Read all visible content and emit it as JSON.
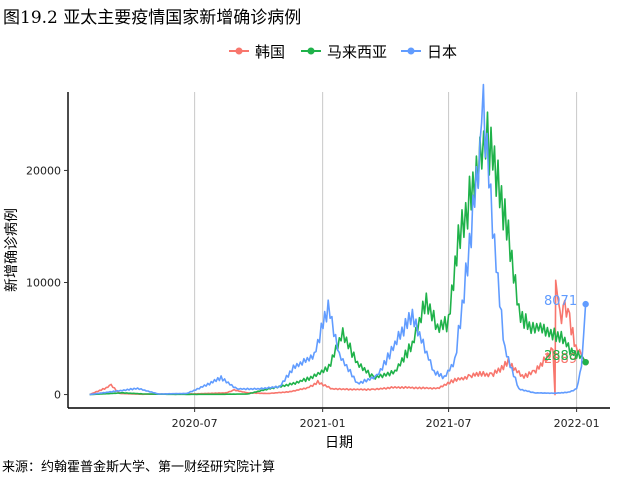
{
  "title": "图19.2 亚太主要疫情国家新增确诊病例",
  "source": "来源：约翰霍普金斯大学、第一财经研究院计算",
  "chart_data": {
    "type": "line",
    "xlabel": "日期",
    "ylabel": "新增确诊病例",
    "x_ticks": [
      "2020-07",
      "2021-01",
      "2021-07",
      "2022-01"
    ],
    "y_ticks": [
      0,
      10000,
      20000
    ],
    "ylim": [
      -1200,
      27000
    ],
    "grid": "vertical major gridlines only",
    "legend_position": "top",
    "series": [
      {
        "name": "韩国",
        "color": "#F8766D",
        "end_label": "2889",
        "points": [
          [
            "2020-02-01",
            0
          ],
          [
            "2020-02-25",
            600
          ],
          [
            "2020-03-03",
            850
          ],
          [
            "2020-03-15",
            100
          ],
          [
            "2020-04-15",
            30
          ],
          [
            "2020-06-01",
            40
          ],
          [
            "2020-07-01",
            60
          ],
          [
            "2020-08-15",
            150
          ],
          [
            "2020-08-27",
            400
          ],
          [
            "2020-09-15",
            150
          ],
          [
            "2020-10-15",
            100
          ],
          [
            "2020-11-15",
            250
          ],
          [
            "2020-12-10",
            600
          ],
          [
            "2020-12-25",
            1100
          ],
          [
            "2021-01-15",
            500
          ],
          [
            "2021-02-15",
            450
          ],
          [
            "2021-03-15",
            450
          ],
          [
            "2021-04-15",
            650
          ],
          [
            "2021-05-15",
            600
          ],
          [
            "2021-06-15",
            550
          ],
          [
            "2021-07-10",
            1300
          ],
          [
            "2021-08-01",
            1600
          ],
          [
            "2021-08-15",
            1900
          ],
          [
            "2021-09-01",
            1700
          ],
          [
            "2021-09-25",
            2900
          ],
          [
            "2021-10-15",
            1600
          ],
          [
            "2021-11-01",
            2000
          ],
          [
            "2021-11-15",
            3000
          ],
          [
            "2021-11-28",
            4000
          ],
          [
            "2021-12-01",
            0
          ],
          [
            "2021-12-02",
            10200
          ],
          [
            "2021-12-08",
            7000
          ],
          [
            "2021-12-15",
            7800
          ],
          [
            "2021-12-22",
            6500
          ],
          [
            "2021-12-31",
            4200
          ],
          [
            "2022-01-08",
            3500
          ],
          [
            "2022-01-14",
            2889
          ]
        ]
      },
      {
        "name": "马来西亚",
        "color": "#1FB24A",
        "end_label": "2888",
        "points": [
          [
            "2020-02-01",
            0
          ],
          [
            "2020-03-20",
            150
          ],
          [
            "2020-04-20",
            50
          ],
          [
            "2020-06-01",
            20
          ],
          [
            "2020-08-01",
            20
          ],
          [
            "2020-09-15",
            50
          ],
          [
            "2020-10-15",
            500
          ],
          [
            "2020-11-15",
            900
          ],
          [
            "2020-12-15",
            1500
          ],
          [
            "2021-01-10",
            2400
          ],
          [
            "2021-01-30",
            5500
          ],
          [
            "2021-02-20",
            2800
          ],
          [
            "2021-03-15",
            1500
          ],
          [
            "2021-04-15",
            2000
          ],
          [
            "2021-05-10",
            4500
          ],
          [
            "2021-05-30",
            8500
          ],
          [
            "2021-06-15",
            5800
          ],
          [
            "2021-07-01",
            6500
          ],
          [
            "2021-07-15",
            13500
          ],
          [
            "2021-07-31",
            17500
          ],
          [
            "2021-08-15",
            21000
          ],
          [
            "2021-08-26",
            23000
          ],
          [
            "2021-09-10",
            19500
          ],
          [
            "2021-09-25",
            14000
          ],
          [
            "2021-10-10",
            7500
          ],
          [
            "2021-10-25",
            6000
          ],
          [
            "2021-11-10",
            6000
          ],
          [
            "2021-11-25",
            5500
          ],
          [
            "2021-12-10",
            5200
          ],
          [
            "2021-12-25",
            3800
          ],
          [
            "2022-01-08",
            3500
          ],
          [
            "2022-01-14",
            2888
          ]
        ]
      },
      {
        "name": "日本",
        "color": "#619CFF",
        "end_label": "8071",
        "points": [
          [
            "2020-02-01",
            0
          ],
          [
            "2020-04-10",
            550
          ],
          [
            "2020-05-10",
            50
          ],
          [
            "2020-06-20",
            100
          ],
          [
            "2020-07-20",
            900
          ],
          [
            "2020-08-08",
            1500
          ],
          [
            "2020-08-31",
            500
          ],
          [
            "2020-09-30",
            500
          ],
          [
            "2020-10-31",
            700
          ],
          [
            "2020-11-20",
            2400
          ],
          [
            "2020-12-20",
            3500
          ],
          [
            "2021-01-09",
            7900
          ],
          [
            "2021-01-25",
            3500
          ],
          [
            "2021-02-20",
            1000
          ],
          [
            "2021-03-20",
            1600
          ],
          [
            "2021-04-15",
            4500
          ],
          [
            "2021-05-10",
            7000
          ],
          [
            "2021-06-10",
            2000
          ],
          [
            "2021-06-25",
            1500
          ],
          [
            "2021-07-10",
            3000
          ],
          [
            "2021-07-31",
            13000
          ],
          [
            "2021-08-15",
            22500
          ],
          [
            "2021-08-20",
            26000
          ],
          [
            "2021-09-05",
            13000
          ],
          [
            "2021-09-20",
            4000
          ],
          [
            "2021-10-10",
            500
          ],
          [
            "2021-11-01",
            150
          ],
          [
            "2021-12-01",
            120
          ],
          [
            "2021-12-20",
            200
          ],
          [
            "2022-01-01",
            500
          ],
          [
            "2022-01-08",
            2500
          ],
          [
            "2022-01-14",
            8071
          ]
        ]
      }
    ]
  }
}
